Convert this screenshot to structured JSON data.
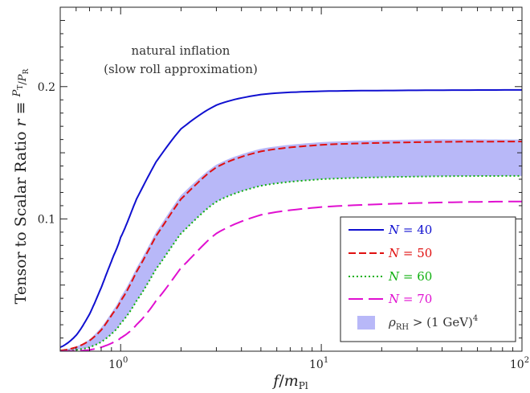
{
  "chart_data": {
    "type": "line",
    "xscale": "log",
    "xlim": [
      0.5,
      100
    ],
    "ylim": [
      0,
      0.26
    ],
    "xlabel": "f/m_Pl",
    "ylabel": "Tensor to Scalar Ratio r ≡ P_T/P_R",
    "x_ticks": [
      {
        "value": 1,
        "label": "10^0"
      },
      {
        "value": 10,
        "label": "10^1"
      },
      {
        "value": 100,
        "label": "10^2"
      }
    ],
    "y_ticks": [
      {
        "value": 0.1,
        "label": "0.1"
      },
      {
        "value": 0.2,
        "label": "0.2"
      }
    ],
    "annotation": [
      "natural inflation",
      "(slow roll approximation)"
    ],
    "grid": false,
    "legend_position": "bottom-right",
    "series": [
      {
        "name": "N = 40",
        "color": "#1010d0",
        "dash": "solid",
        "x": [
          0.5,
          0.6,
          0.7,
          0.8,
          0.9,
          1.0,
          1.2,
          1.5,
          2.0,
          3.0,
          5.0,
          10,
          30,
          100
        ],
        "y": [
          0.003,
          0.012,
          0.028,
          0.048,
          0.068,
          0.086,
          0.115,
          0.143,
          0.168,
          0.186,
          0.194,
          0.1965,
          0.1972,
          0.1975
        ]
      },
      {
        "name": "N = 50",
        "color": "#e01010",
        "dash": "dashed",
        "x": [
          0.5,
          0.6,
          0.7,
          0.8,
          0.9,
          1.0,
          1.2,
          1.5,
          2.0,
          3.0,
          5.0,
          10,
          30,
          100
        ],
        "y": [
          0.0005,
          0.003,
          0.008,
          0.016,
          0.027,
          0.038,
          0.06,
          0.087,
          0.115,
          0.139,
          0.151,
          0.156,
          0.158,
          0.1585
        ]
      },
      {
        "name": "N = 60",
        "color": "#10b010",
        "dash": "dotted",
        "x": [
          0.5,
          0.6,
          0.7,
          0.8,
          0.9,
          1.0,
          1.2,
          1.5,
          2.0,
          3.0,
          5.0,
          10,
          30,
          100
        ],
        "y": [
          0.0001,
          0.001,
          0.003,
          0.007,
          0.013,
          0.021,
          0.038,
          0.062,
          0.089,
          0.113,
          0.125,
          0.13,
          0.132,
          0.1325
        ]
      },
      {
        "name": "N = 70",
        "color": "#e010d0",
        "dash": "longdash",
        "x": [
          0.5,
          0.6,
          0.7,
          0.8,
          0.9,
          1.0,
          1.2,
          1.5,
          2.0,
          3.0,
          5.0,
          10,
          30,
          100
        ],
        "y": [
          0,
          0.0003,
          0.001,
          0.003,
          0.006,
          0.01,
          0.02,
          0.038,
          0.063,
          0.089,
          0.103,
          0.109,
          0.112,
          0.1132
        ]
      }
    ],
    "band": {
      "name": "ρ_RH > (1 GeV)^4",
      "color": "#b8b8f8",
      "x": [
        0.5,
        0.6,
        0.7,
        0.8,
        0.9,
        1.0,
        1.2,
        1.5,
        2.0,
        3.0,
        5.0,
        10,
        30,
        100
      ],
      "upper": [
        0.0008,
        0.0035,
        0.009,
        0.018,
        0.029,
        0.041,
        0.063,
        0.09,
        0.118,
        0.141,
        0.153,
        0.158,
        0.16,
        0.16
      ],
      "lower": [
        0.0001,
        0.001,
        0.003,
        0.007,
        0.013,
        0.021,
        0.038,
        0.062,
        0.089,
        0.113,
        0.125,
        0.13,
        0.132,
        0.1325
      ]
    }
  }
}
